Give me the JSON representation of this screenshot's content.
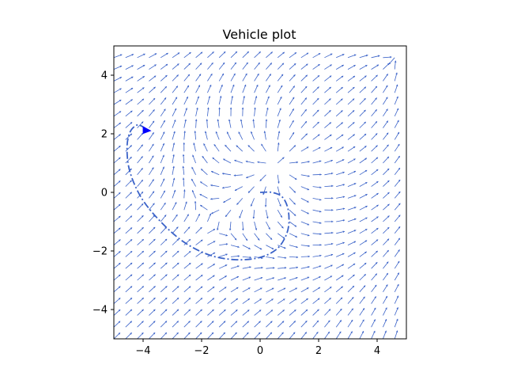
{
  "chart_data": {
    "type": "quiver",
    "title": "Vehicle plot",
    "xlim": [
      -5,
      5
    ],
    "ylim": [
      -5,
      5
    ],
    "xticks": [
      -4,
      -2,
      0,
      2,
      4
    ],
    "yticks": [
      -4,
      -2,
      0,
      2,
      4
    ],
    "grid": false,
    "vector_field": {
      "x_start": -5,
      "y_start": -5,
      "step": 0.4,
      "count": 25,
      "color": "#3a62c8"
    },
    "trajectory": {
      "style": "dash-dot",
      "color": "#3a62c8",
      "points": [
        [
          0,
          0
        ],
        [
          0.4,
          0.0
        ],
        [
          0.75,
          -0.15
        ],
        [
          0.95,
          -0.55
        ],
        [
          0.98,
          -1.1
        ],
        [
          0.85,
          -1.55
        ],
        [
          0.55,
          -1.95
        ],
        [
          0.0,
          -2.22
        ],
        [
          -0.8,
          -2.3
        ],
        [
          -1.7,
          -2.15
        ],
        [
          -2.6,
          -1.7
        ],
        [
          -3.4,
          -1.0
        ],
        [
          -4.05,
          -0.2
        ],
        [
          -4.45,
          0.7
        ],
        [
          -4.55,
          1.5
        ],
        [
          -4.45,
          2.05
        ],
        [
          -4.2,
          2.3
        ],
        [
          -3.95,
          2.2
        ],
        [
          -3.85,
          2.1
        ]
      ]
    },
    "vehicle": {
      "x": -3.85,
      "y": 2.1,
      "color": "#0000ff"
    }
  }
}
